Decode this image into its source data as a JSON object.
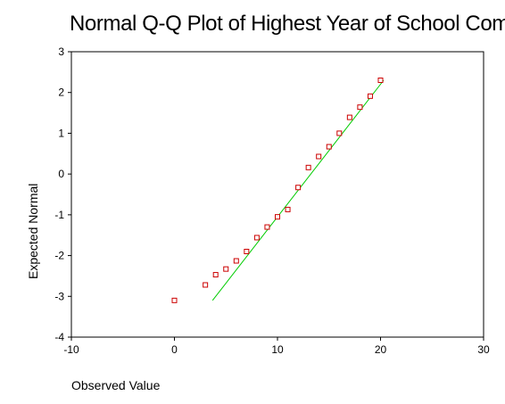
{
  "chart_data": {
    "type": "scatter",
    "title": "Normal Q-Q Plot of Highest Year of School Com",
    "xlabel": "Observed Value",
    "ylabel": "Expected Normal",
    "xlim": [
      -10,
      30
    ],
    "ylim": [
      -4,
      3
    ],
    "x_ticks": [
      -10,
      0,
      10,
      20,
      30
    ],
    "y_ticks": [
      3,
      2,
      1,
      0,
      -1,
      -2,
      -3,
      -4
    ],
    "x_tick_labels": [
      "-10",
      "0",
      "10",
      "20",
      "30"
    ],
    "y_tick_labels": [
      "3",
      "2",
      "1",
      "0",
      "-1",
      "-2",
      "-3",
      "-4"
    ],
    "grid": false,
    "series": [
      {
        "marker": "square",
        "color": "#cc0000",
        "x": [
          0,
          3,
          4,
          5,
          6,
          7,
          8,
          9,
          10,
          11,
          12,
          13,
          14,
          15,
          16,
          17,
          18,
          19,
          20
        ],
        "y": [
          -3.1,
          -2.72,
          -2.47,
          -2.33,
          -2.13,
          -1.9,
          -1.56,
          -1.3,
          -1.05,
          -0.87,
          -0.33,
          0.16,
          0.43,
          0.67,
          1.0,
          1.39,
          1.64,
          1.91,
          2.3
        ]
      }
    ],
    "reference_line": {
      "color": "#00cc00",
      "x": [
        3.7,
        20.3
      ],
      "y": [
        -3.1,
        2.3
      ]
    }
  }
}
